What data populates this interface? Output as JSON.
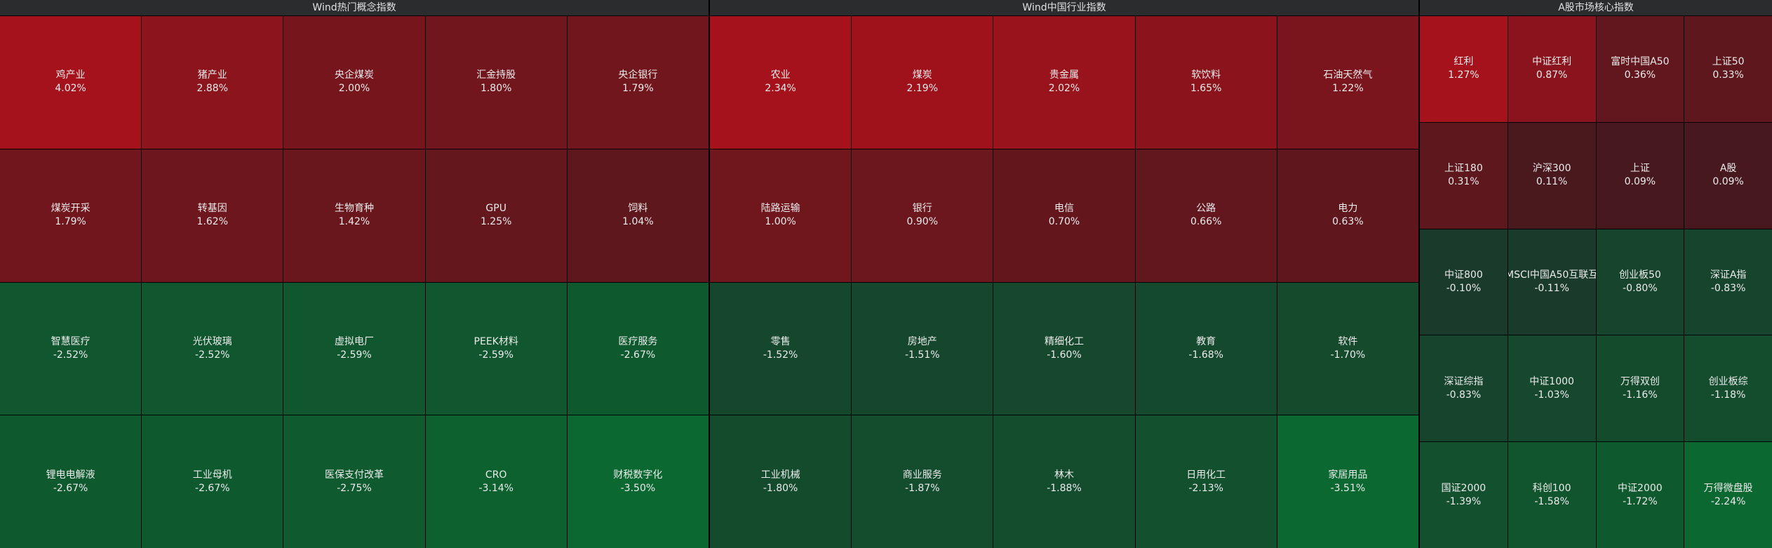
{
  "panels": [
    {
      "title": "Wind热门概念指数",
      "columns": 5,
      "tiles": [
        {
          "name": "鸡产业",
          "change": "4.02%"
        },
        {
          "name": "猪产业",
          "change": "2.88%"
        },
        {
          "name": "央企煤炭",
          "change": "2.00%"
        },
        {
          "name": "汇金持股",
          "change": "1.80%"
        },
        {
          "name": "央企银行",
          "change": "1.79%"
        },
        {
          "name": "煤炭开采",
          "change": "1.79%"
        },
        {
          "name": "转基因",
          "change": "1.62%"
        },
        {
          "name": "生物育种",
          "change": "1.42%"
        },
        {
          "name": "GPU",
          "change": "1.25%"
        },
        {
          "name": "饲料",
          "change": "1.04%"
        },
        {
          "name": "智慧医疗",
          "change": "-2.52%"
        },
        {
          "name": "光伏玻璃",
          "change": "-2.52%"
        },
        {
          "name": "虚拟电厂",
          "change": "-2.59%"
        },
        {
          "name": "PEEK材料",
          "change": "-2.59%"
        },
        {
          "name": "医疗服务",
          "change": "-2.67%"
        },
        {
          "name": "锂电电解液",
          "change": "-2.67%"
        },
        {
          "name": "工业母机",
          "change": "-2.67%"
        },
        {
          "name": "医保支付改革",
          "change": "-2.75%"
        },
        {
          "name": "CRO",
          "change": "-3.14%"
        },
        {
          "name": "财税数字化",
          "change": "-3.50%"
        }
      ]
    },
    {
      "title": "Wind中国行业指数",
      "columns": 5,
      "tiles": [
        {
          "name": "农业",
          "change": "2.34%"
        },
        {
          "name": "煤炭",
          "change": "2.19%"
        },
        {
          "name": "贵金属",
          "change": "2.02%"
        },
        {
          "name": "软饮料",
          "change": "1.65%"
        },
        {
          "name": "石油天然气",
          "change": "1.22%"
        },
        {
          "name": "陆路运输",
          "change": "1.00%"
        },
        {
          "name": "银行",
          "change": "0.90%"
        },
        {
          "name": "电信",
          "change": "0.70%"
        },
        {
          "name": "公路",
          "change": "0.66%"
        },
        {
          "name": "电力",
          "change": "0.63%"
        },
        {
          "name": "零售",
          "change": "-1.52%"
        },
        {
          "name": "房地产",
          "change": "-1.51%"
        },
        {
          "name": "精细化工",
          "change": "-1.60%"
        },
        {
          "name": "教育",
          "change": "-1.68%"
        },
        {
          "name": "软件",
          "change": "-1.70%"
        },
        {
          "name": "工业机械",
          "change": "-1.80%"
        },
        {
          "name": "商业服务",
          "change": "-1.87%"
        },
        {
          "name": "林木",
          "change": "-1.88%"
        },
        {
          "name": "日用化工",
          "change": "-2.13%"
        },
        {
          "name": "家居用品",
          "change": "-3.51%"
        }
      ]
    },
    {
      "title": "A股市场核心指数",
      "columns": 4,
      "tiles": [
        {
          "name": "红利",
          "change": "1.27%"
        },
        {
          "name": "中证红利",
          "change": "0.87%"
        },
        {
          "name": "富时中国A50",
          "change": "0.36%"
        },
        {
          "name": "上证50",
          "change": "0.33%"
        },
        {
          "name": "上证180",
          "change": "0.31%"
        },
        {
          "name": "沪深300",
          "change": "0.11%"
        },
        {
          "name": "上证",
          "change": "0.09%"
        },
        {
          "name": "A股",
          "change": "0.09%"
        },
        {
          "name": "中证800",
          "change": "-0.10%"
        },
        {
          "name": "MSCI中国A50互联互",
          "change": "-0.11%"
        },
        {
          "name": "创业板50",
          "change": "-0.80%"
        },
        {
          "name": "深证A指",
          "change": "-0.83%"
        },
        {
          "name": "深证综指",
          "change": "-0.83%"
        },
        {
          "name": "中证1000",
          "change": "-1.03%"
        },
        {
          "name": "万得双创",
          "change": "-1.16%"
        },
        {
          "name": "创业板综",
          "change": "-1.18%"
        },
        {
          "name": "国证2000",
          "change": "-1.39%"
        },
        {
          "name": "科创100",
          "change": "-1.58%"
        },
        {
          "name": "中证2000",
          "change": "-1.72%"
        },
        {
          "name": "万得微盘股",
          "change": "-2.24%"
        }
      ]
    }
  ]
}
